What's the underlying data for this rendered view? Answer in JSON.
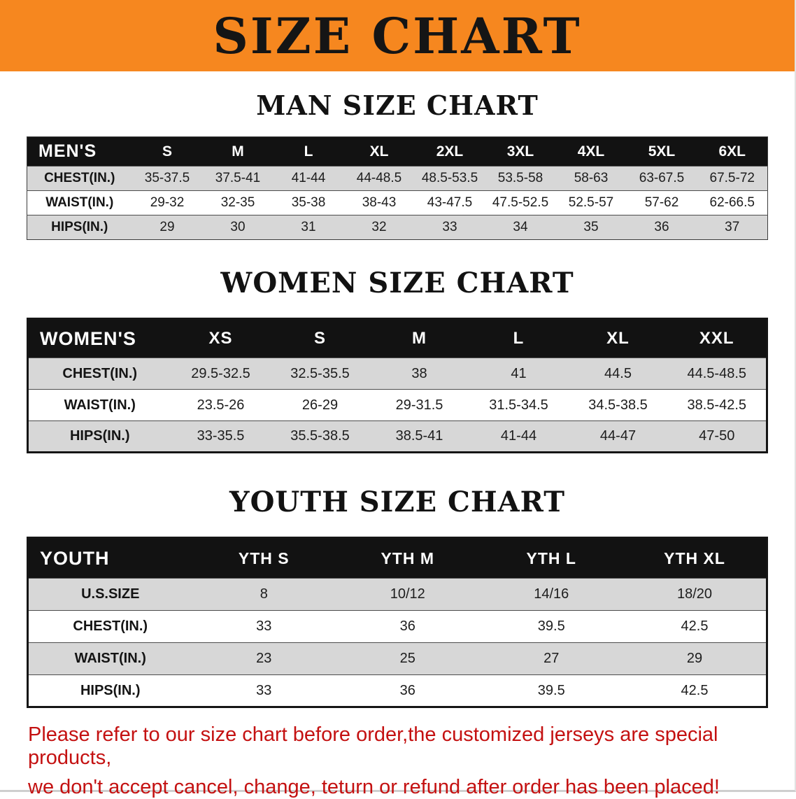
{
  "colors": {
    "banner_bg": "#F6871F",
    "header_bg": "#121212",
    "stripe": "#d7d7d7",
    "note_red": "#c41111"
  },
  "banner": {
    "title": "SIZE CHART"
  },
  "sections": {
    "men": {
      "heading": "MAN SIZE CHART",
      "table": {
        "header": [
          "MEN'S",
          "S",
          "M",
          "L",
          "XL",
          "2XL",
          "3XL",
          "4XL",
          "5XL",
          "6XL"
        ],
        "rows": [
          {
            "label": "CHEST(IN.)",
            "shaded": true,
            "values": [
              "35-37.5",
              "37.5-41",
              "41-44",
              "44-48.5",
              "48.5-53.5",
              "53.5-58",
              "58-63",
              "63-67.5",
              "67.5-72"
            ]
          },
          {
            "label": "WAIST(IN.)",
            "shaded": false,
            "values": [
              "29-32",
              "32-35",
              "35-38",
              "38-43",
              "43-47.5",
              "47.5-52.5",
              "52.5-57",
              "57-62",
              "62-66.5"
            ]
          },
          {
            "label": "HIPS(IN.)",
            "shaded": true,
            "values": [
              "29",
              "30",
              "31",
              "32",
              "33",
              "34",
              "35",
              "36",
              "37"
            ]
          }
        ]
      }
    },
    "women": {
      "heading": "WOMEN SIZE CHART",
      "table": {
        "header": [
          "WOMEN'S",
          "XS",
          "S",
          "M",
          "L",
          "XL",
          "XXL"
        ],
        "rows": [
          {
            "label": "CHEST(IN.)",
            "shaded": true,
            "values": [
              "29.5-32.5",
              "32.5-35.5",
              "38",
              "41",
              "44.5",
              "44.5-48.5"
            ]
          },
          {
            "label": "WAIST(IN.)",
            "shaded": false,
            "values": [
              "23.5-26",
              "26-29",
              "29-31.5",
              "31.5-34.5",
              "34.5-38.5",
              "38.5-42.5"
            ]
          },
          {
            "label": "HIPS(IN.)",
            "shaded": true,
            "values": [
              "33-35.5",
              "35.5-38.5",
              "38.5-41",
              "41-44",
              "44-47",
              "47-50"
            ]
          }
        ]
      }
    },
    "youth": {
      "heading": "YOUTH SIZE CHART",
      "table": {
        "header": [
          "YOUTH",
          "YTH S",
          "YTH M",
          "YTH L",
          "YTH XL"
        ],
        "rows": [
          {
            "label": "U.S.SIZE",
            "shaded": true,
            "values": [
              "8",
              "10/12",
              "14/16",
              "18/20"
            ]
          },
          {
            "label": "CHEST(IN.)",
            "shaded": false,
            "values": [
              "33",
              "36",
              "39.5",
              "42.5"
            ]
          },
          {
            "label": "WAIST(IN.)",
            "shaded": true,
            "values": [
              "23",
              "25",
              "27",
              "29"
            ]
          },
          {
            "label": "HIPS(IN.)",
            "shaded": false,
            "values": [
              "33",
              "36",
              "39.5",
              "42.5"
            ]
          }
        ]
      }
    }
  },
  "footer": {
    "line1": "Please refer to our size chart before order,the customized jerseys are special products,",
    "line2": "we don't accept cancel, change, teturn or refund after order has been placed!"
  }
}
